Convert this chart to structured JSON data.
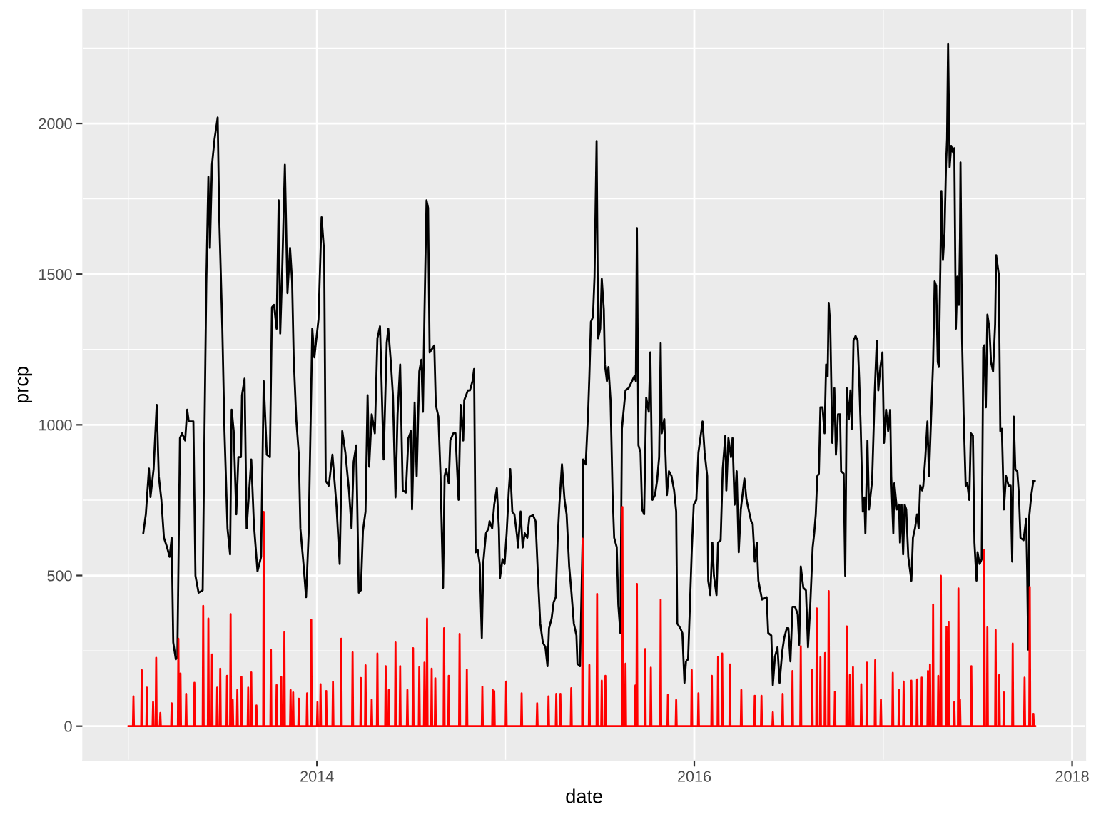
{
  "chart_data": {
    "type": "line",
    "xlabel": "date",
    "ylabel": "prcp",
    "xlim": [
      "2012-10-05",
      "2018-01-27"
    ],
    "ylim": [
      -113,
      2378
    ],
    "xticks": [
      "2014",
      "2016",
      "2018"
    ],
    "yticks": [
      0,
      500,
      1000,
      1500,
      2000
    ],
    "grid": true,
    "series": [
      {
        "color": "#000000",
        "x": [
          "2013-01-30",
          "2013-02-04",
          "2013-02-10",
          "2013-02-13",
          "2013-02-19",
          "2013-02-25",
          "2013-03-01",
          "2013-03-06",
          "2013-03-11",
          "2013-03-17",
          "2013-03-22",
          "2013-03-26",
          "2013-03-29",
          "2013-04-03",
          "2013-04-06",
          "2013-04-11",
          "2013-04-15",
          "2013-04-21",
          "2013-04-25",
          "2013-04-28",
          "2013-05-07",
          "2013-05-11",
          "2013-05-17",
          "2013-05-25",
          "2013-05-28",
          "2013-06-01",
          "2013-06-05",
          "2013-06-08",
          "2013-06-12",
          "2013-06-17",
          "2013-06-23",
          "2013-06-26",
          "2013-07-02",
          "2013-07-06",
          "2013-07-12",
          "2013-07-17",
          "2013-07-20",
          "2013-07-24",
          "2013-07-29",
          "2013-08-02",
          "2013-08-07",
          "2013-08-09",
          "2013-08-14",
          "2013-08-18",
          "2013-08-27",
          "2013-09-01",
          "2013-09-08",
          "2013-09-15",
          "2013-09-20",
          "2013-09-26",
          "2013-10-02",
          "2013-10-06",
          "2013-10-10",
          "2013-10-15",
          "2013-10-19",
          "2013-10-22",
          "2013-10-26",
          "2013-10-31",
          "2013-11-05",
          "2013-11-10",
          "2013-11-14",
          "2013-11-17",
          "2013-11-22",
          "2013-11-27",
          "2013-11-30",
          "2013-12-06",
          "2013-12-11",
          "2013-12-16",
          "2013-12-23",
          "2013-12-27",
          "2014-01-04",
          "2014-01-10",
          "2014-01-15",
          "2014-01-18",
          "2014-01-24",
          "2014-01-31",
          "2014-02-08",
          "2014-02-14",
          "2014-02-19",
          "2014-02-25",
          "2014-03-04",
          "2014-03-09",
          "2014-03-13",
          "2014-03-18",
          "2014-03-23",
          "2014-03-27",
          "2014-03-31",
          "2014-04-05",
          "2014-04-09",
          "2014-04-12",
          "2014-04-17",
          "2014-04-23",
          "2014-04-28",
          "2014-05-03",
          "2014-05-05",
          "2014-05-10",
          "2014-05-16",
          "2014-05-19",
          "2014-05-24",
          "2014-05-28",
          "2014-06-02",
          "2014-06-06",
          "2014-06-11",
          "2014-06-16",
          "2014-06-22",
          "2014-06-27",
          "2014-07-02",
          "2014-07-04",
          "2014-07-09",
          "2014-07-13",
          "2014-07-18",
          "2014-07-22",
          "2014-07-25",
          "2014-07-28",
          "2014-08-01",
          "2014-08-04",
          "2014-08-07",
          "2014-08-16",
          "2014-08-19",
          "2014-08-24",
          "2014-08-28",
          "2014-09-02",
          "2014-09-05",
          "2014-09-08",
          "2014-09-13",
          "2014-09-16",
          "2014-09-22",
          "2014-09-26",
          "2014-10-02",
          "2014-10-06",
          "2014-10-11",
          "2014-10-13",
          "2014-10-20",
          "2014-10-24",
          "2014-10-29",
          "2014-11-01",
          "2014-11-04",
          "2014-11-08",
          "2014-11-12",
          "2014-11-16",
          "2014-11-19",
          "2014-11-24",
          "2014-11-29",
          "2014-12-01",
          "2014-12-06",
          "2014-12-10",
          "2014-12-15",
          "2014-12-19",
          "2014-12-21",
          "2014-12-26",
          "2014-12-30",
          "2015-01-03",
          "2015-01-07",
          "2015-01-10",
          "2015-01-14",
          "2015-01-18",
          "2015-01-23",
          "2015-01-25",
          "2015-01-30",
          "2015-02-03",
          "2015-02-07",
          "2015-02-12",
          "2015-02-16",
          "2015-02-23",
          "2015-02-28",
          "2015-03-05",
          "2015-03-09",
          "2015-03-14",
          "2015-03-19",
          "2015-03-23",
          "2015-03-26",
          "2015-03-31",
          "2015-04-04",
          "2015-04-08",
          "2015-04-12",
          "2015-04-15",
          "2015-04-20",
          "2015-04-25",
          "2015-04-29",
          "2015-05-04",
          "2015-05-08",
          "2015-05-13",
          "2015-05-18",
          "2015-05-20",
          "2015-05-25",
          "2015-05-30",
          "2015-05-31",
          "2015-06-05",
          "2015-06-10",
          "2015-06-12",
          "2015-06-15",
          "2015-06-19",
          "2015-06-22",
          "2015-06-26",
          "2015-06-29",
          "2015-07-03",
          "2015-07-06",
          "2015-07-10",
          "2015-07-12",
          "2015-07-16",
          "2015-07-19",
          "2015-07-23",
          "2015-07-27",
          "2015-07-30",
          "2015-08-04",
          "2015-08-07",
          "2015-08-11",
          "2015-08-14",
          "2015-08-21",
          "2015-08-27",
          "2015-09-07",
          "2015-09-10",
          "2015-09-12",
          "2015-09-15",
          "2015-09-19",
          "2015-09-22",
          "2015-09-26",
          "2015-09-30",
          "2015-10-05",
          "2015-10-08",
          "2015-10-12",
          "2015-10-17",
          "2015-10-21",
          "2015-10-25",
          "2015-10-28",
          "2015-10-30",
          "2015-11-04",
          "2015-11-09",
          "2015-11-13",
          "2015-11-18",
          "2015-11-23",
          "2015-11-27",
          "2015-11-29",
          "2015-12-05",
          "2015-12-09",
          "2015-12-13",
          "2015-12-16",
          "2015-12-20",
          "2015-12-23",
          "2015-12-27",
          "2015-12-31",
          "2016-01-05",
          "2016-01-09",
          "2016-01-14",
          "2016-01-17",
          "2016-01-21",
          "2016-01-26",
          "2016-01-28",
          "2016-02-01",
          "2016-02-05",
          "2016-02-08",
          "2016-02-13",
          "2016-02-16",
          "2016-02-21",
          "2016-02-25",
          "2016-03-01",
          "2016-03-03",
          "2016-03-07",
          "2016-03-12",
          "2016-03-15",
          "2016-03-19",
          "2016-03-23",
          "2016-03-27",
          "2016-03-31",
          "2016-04-07",
          "2016-04-11",
          "2016-04-20",
          "2016-04-23",
          "2016-04-27",
          "2016-05-01",
          "2016-05-04",
          "2016-05-11",
          "2016-05-20",
          "2016-05-23",
          "2016-05-29",
          "2016-06-01",
          "2016-06-05",
          "2016-06-10",
          "2016-06-14",
          "2016-06-19",
          "2016-06-23",
          "2016-06-28",
          "2016-07-01",
          "2016-07-05",
          "2016-07-09",
          "2016-07-14",
          "2016-07-19",
          "2016-07-22",
          "2016-07-25",
          "2016-07-30",
          "2016-08-04",
          "2016-08-08",
          "2016-08-12",
          "2016-08-17",
          "2016-08-20",
          "2016-08-23",
          "2016-08-26",
          "2016-08-29",
          "2016-09-01",
          "2016-09-05",
          "2016-09-09",
          "2016-09-12",
          "2016-09-15",
          "2016-09-17",
          "2016-09-20",
          "2016-09-24",
          "2016-09-28",
          "2016-10-01",
          "2016-10-05",
          "2016-10-09",
          "2016-10-11",
          "2016-10-16",
          "2016-10-19",
          "2016-10-22",
          "2016-10-26",
          "2016-10-29",
          "2016-11-01",
          "2016-11-04",
          "2016-11-08",
          "2016-11-12",
          "2016-11-15",
          "2016-11-18",
          "2016-11-22",
          "2016-11-25",
          "2016-11-27",
          "2016-12-01",
          "2016-12-04",
          "2016-12-07",
          "2016-12-10",
          "2016-12-15",
          "2016-12-19",
          "2016-12-22",
          "2016-12-26",
          "2016-12-30",
          "2017-01-02",
          "2017-01-06",
          "2017-01-10",
          "2017-01-14",
          "2017-01-16",
          "2017-01-20",
          "2017-01-22",
          "2017-01-27",
          "2017-01-31",
          "2017-02-02",
          "2017-02-05",
          "2017-02-08",
          "2017-02-11",
          "2017-02-14",
          "2017-02-18",
          "2017-02-24",
          "2017-02-27",
          "2017-03-03",
          "2017-03-07",
          "2017-03-10",
          "2017-03-13",
          "2017-03-17",
          "2017-03-19",
          "2017-03-23",
          "2017-03-27",
          "2017-03-30",
          "2017-04-03",
          "2017-04-07",
          "2017-04-10",
          "2017-04-13",
          "2017-04-16",
          "2017-04-18",
          "2017-04-21",
          "2017-04-23",
          "2017-04-26",
          "2017-04-29",
          "2017-05-02",
          "2017-05-04",
          "2017-05-06",
          "2017-05-09",
          "2017-05-12",
          "2017-05-16",
          "2017-05-18",
          "2017-05-21",
          "2017-05-24",
          "2017-05-27",
          "2017-05-29",
          "2017-05-30",
          "2017-06-02",
          "2017-06-05",
          "2017-06-09",
          "2017-06-12",
          "2017-06-16",
          "2017-06-19",
          "2017-06-23",
          "2017-06-26",
          "2017-06-30",
          "2017-07-02",
          "2017-07-06",
          "2017-07-10",
          "2017-07-13",
          "2017-07-15",
          "2017-07-18",
          "2017-07-21",
          "2017-07-25",
          "2017-07-28",
          "2017-08-01",
          "2017-08-05",
          "2017-08-07",
          "2017-08-12",
          "2017-08-15",
          "2017-08-18",
          "2017-08-22",
          "2017-08-26",
          "2017-08-31",
          "2017-09-04",
          "2017-09-07",
          "2017-09-10",
          "2017-09-13",
          "2017-09-17",
          "2017-09-20",
          "2017-09-23",
          "2017-09-29",
          "2017-10-04",
          "2017-10-06",
          "2017-10-08",
          "2017-10-10",
          "2017-10-14",
          "2017-10-18",
          "2017-10-21"
        ],
        "values": [
          640,
          703,
          855,
          760,
          853,
          1066,
          830,
          751,
          625,
          594,
          562,
          625,
          278,
          222,
          230,
          956,
          972,
          948,
          1050,
          1011,
          1011,
          499,
          443,
          451,
          908,
          1469,
          1823,
          1587,
          1863,
          1949,
          2020,
          1689,
          1319,
          987,
          656,
          570,
          1050,
          979,
          703,
          893,
          893,
          1098,
          1153,
          656,
          885,
          672,
          514,
          562,
          1145,
          901,
          893,
          1390,
          1398,
          1319,
          1745,
          1303,
          1524,
          1863,
          1437,
          1587,
          1476,
          1224,
          1019,
          901,
          656,
          538,
          428,
          640,
          1319,
          1224,
          1350,
          1689,
          1571,
          814,
          798,
          901,
          727,
          538,
          979,
          908,
          782,
          656,
          877,
          932,
          443,
          451,
          648,
          712,
          1098,
          861,
          1035,
          972,
          1287,
          1327,
          1208,
          885,
          1271,
          1319,
          1208,
          1098,
          759,
          1035,
          1200,
          782,
          775,
          956,
          979,
          719,
          1074,
          830,
          1177,
          1216,
          1043,
          1366,
          1745,
          1720,
          1240,
          1263,
          1066,
          1027,
          837,
          459,
          830,
          853,
          806,
          948,
          972,
          972,
          751,
          1066,
          948,
          1082,
          1114,
          1114,
          1145,
          1185,
          577,
          585,
          538,
          293,
          546,
          640,
          656,
          680,
          656,
          735,
          790,
          656,
          491,
          554,
          538,
          640,
          775,
          853,
          712,
          703,
          633,
          593,
          712,
          593,
          640,
          625,
          694,
          700,
          680,
          483,
          341,
          278,
          262,
          199,
          325,
          357,
          412,
          428,
          633,
          735,
          869,
          751,
          703,
          530,
          451,
          341,
          301,
          207,
          199,
          625,
          885,
          869,
          1058,
          1161,
          1342,
          1358,
          1492,
          1942,
          1287,
          1319,
          1484,
          1382,
          1200,
          1145,
          1192,
          1082,
          767,
          625,
          594,
          404,
          309,
          987,
          1114,
          1122,
          1161,
          1145,
          1653,
          932,
          908,
          719,
          703,
          1090,
          1043,
          1240,
          751,
          767,
          814,
          893,
          1271,
          972,
          1019,
          767,
          846,
          830,
          782,
          712,
          341,
          325,
          309,
          144,
          215,
          222,
          372,
          577,
          735,
          751,
          908,
          972,
          1011,
          908,
          830,
          483,
          435,
          609,
          499,
          435,
          609,
          617,
          853,
          964,
          782,
          956,
          893,
          956,
          735,
          846,
          577,
          719,
          822,
          751,
          680,
          672,
          546,
          609,
          483,
          420,
          428,
          309,
          301,
          136,
          230,
          262,
          144,
          246,
          293,
          325,
          325,
          215,
          396,
          396,
          372,
          270,
          530,
          459,
          451,
          262,
          388,
          593,
          640,
          703,
          830,
          838,
          1058,
          1058,
          972,
          1200,
          1161,
          1405,
          1334,
          940,
          1121,
          901,
          1035,
          1035,
          846,
          838,
          499,
          1121,
          1019,
          1114,
          987,
          1279,
          1295,
          1279,
          1153,
          987,
          712,
          759,
          640,
          948,
          719,
          767,
          814,
          1106,
          1279,
          1114,
          1192,
          1240,
          940,
          1050,
          979,
          1050,
          830,
          640,
          806,
          719,
          735,
          609,
          735,
          570,
          735,
          719,
          562,
          483,
          625,
          656,
          703,
          656,
          798,
          782,
          798,
          893,
          1011,
          830,
          1019,
          1208,
          1476,
          1461,
          1208,
          1192,
          1524,
          1776,
          1547,
          1634,
          1863,
          1949,
          2265,
          1855,
          1926,
          1902,
          1918,
          1319,
          1492,
          1398,
          1618,
          1871,
          1287,
          1035,
          798,
          806,
          751,
          972,
          964,
          609,
          483,
          577,
          538,
          554,
          1256,
          1264,
          1058,
          1366,
          1319,
          1208,
          1177,
          1334,
          1563,
          1500,
          979,
          987,
          719,
          830,
          798,
          798,
          546,
          1027,
          853,
          845,
          767,
          625,
          617,
          688,
          514,
          254,
          696,
          767,
          814,
          814
        ]
      },
      {
        "color": "#ff0000",
        "x": [
          "2013-01-01",
          "2013-01-10",
          "2013-01-11",
          "2013-01-12",
          "2013-01-26",
          "2013-01-27",
          "2013-01-28",
          "2013-02-05",
          "2013-02-06",
          "2013-02-07",
          "2013-02-17",
          "2013-02-18",
          "2013-02-19",
          "2013-02-23",
          "2013-02-24",
          "2013-02-25",
          "2013-03-03",
          "2013-03-04",
          "2013-03-05",
          "2013-03-25",
          "2013-03-26",
          "2013-03-27",
          "2013-04-07",
          "2013-04-08",
          "2013-04-09",
          "2013-04-11",
          "2013-04-12",
          "2013-04-13",
          "2013-04-22",
          "2013-04-23",
          "2013-04-24",
          "2013-05-08",
          "2013-05-09",
          "2013-05-10",
          "2013-05-25",
          "2013-05-26",
          "2013-05-27",
          "2013-06-04",
          "2013-06-05",
          "2013-06-06",
          "2013-06-11",
          "2013-06-12",
          "2013-06-13",
          "2013-06-21",
          "2013-06-22",
          "2013-06-23",
          "2013-06-27",
          "2013-06-28",
          "2013-06-29",
          "2013-07-10",
          "2013-07-11",
          "2013-07-12",
          "2013-07-17",
          "2013-07-18",
          "2013-07-19",
          "2013-07-21",
          "2013-07-22",
          "2013-07-23",
          "2013-07-30",
          "2013-07-31",
          "2013-08-01",
          "2013-08-07",
          "2013-08-08",
          "2013-08-09",
          "2013-08-20",
          "2013-08-21",
          "2013-08-22",
          "2013-08-26",
          "2013-08-27",
          "2013-08-28",
          "2013-09-05",
          "2013-09-06",
          "2013-09-07",
          "2013-09-19",
          "2013-09-20",
          "2013-09-21",
          "2013-10-03",
          "2013-10-04",
          "2013-10-05",
          "2013-10-14",
          "2013-10-15",
          "2013-10-16",
          "2013-10-23",
          "2013-10-24",
          "2013-10-25",
          "2013-10-29",
          "2013-10-30",
          "2013-10-31",
          "2013-11-10",
          "2013-11-11",
          "2013-11-12",
          "2013-11-15",
          "2013-11-16",
          "2013-11-17",
          "2013-11-26",
          "2013-11-27",
          "2013-11-28",
          "2013-12-12",
          "2013-12-13",
          "2013-12-14",
          "2013-12-20",
          "2013-12-21",
          "2013-12-22",
          "2014-01-01",
          "2014-01-02",
          "2014-01-03",
          "2014-01-07",
          "2014-01-08",
          "2014-01-09",
          "2014-01-18",
          "2014-01-19",
          "2014-01-20",
          "2014-01-31",
          "2014-02-01",
          "2014-02-02",
          "2014-02-16",
          "2014-02-17",
          "2014-02-18",
          "2014-03-10",
          "2014-03-11",
          "2014-03-12",
          "2014-03-26",
          "2014-03-27",
          "2014-03-28",
          "2014-04-04",
          "2014-04-05",
          "2014-04-06",
          "2014-04-16",
          "2014-04-17",
          "2014-04-18",
          "2014-04-27",
          "2014-04-28",
          "2014-04-29",
          "2014-05-13",
          "2014-05-14",
          "2014-05-15",
          "2014-05-19",
          "2014-05-20",
          "2014-05-21",
          "2014-06-01",
          "2014-06-02",
          "2014-06-03",
          "2014-06-10",
          "2014-06-11",
          "2014-06-12",
          "2014-06-24",
          "2014-06-25",
          "2014-06-26",
          "2014-07-05",
          "2014-07-06",
          "2014-07-07",
          "2014-07-17",
          "2014-07-18",
          "2014-07-19",
          "2014-07-27",
          "2014-07-28",
          "2014-07-29",
          "2014-08-01",
          "2014-08-02",
          "2014-08-03",
          "2014-08-10",
          "2014-08-11",
          "2014-08-12",
          "2014-08-17",
          "2014-08-18",
          "2014-08-19",
          "2014-09-03",
          "2014-09-04",
          "2014-09-05",
          "2014-09-12",
          "2014-09-13",
          "2014-09-14",
          "2014-10-03",
          "2014-10-04",
          "2014-10-05",
          "2014-10-17",
          "2014-10-18",
          "2014-10-19",
          "2014-11-16",
          "2014-11-17",
          "2014-11-18",
          "2014-12-06",
          "2014-12-07",
          "2014-12-08",
          "2014-12-09",
          "2014-12-10",
          "2014-12-11",
          "2015-01-01",
          "2015-01-02",
          "2015-01-03",
          "2015-01-31",
          "2015-02-01",
          "2015-02-02",
          "2015-03-02",
          "2015-03-03",
          "2015-03-04",
          "2015-03-24",
          "2015-03-25",
          "2015-03-26",
          "2015-04-08",
          "2015-04-09",
          "2015-04-10",
          "2015-04-16",
          "2015-04-17",
          "2015-04-18",
          "2015-05-07",
          "2015-05-08",
          "2015-05-09",
          "2015-05-29",
          "2015-05-30",
          "2015-05-31",
          "2015-06-11",
          "2015-06-12",
          "2015-06-13",
          "2015-06-26",
          "2015-06-27",
          "2015-06-28",
          "2015-07-05",
          "2015-07-06",
          "2015-07-07",
          "2015-07-12",
          "2015-07-13",
          "2015-07-14",
          "2015-08-14",
          "2015-08-15",
          "2015-08-16",
          "2015-08-20",
          "2015-08-21",
          "2015-08-22",
          "2015-09-08",
          "2015-09-09",
          "2015-09-10",
          "2015-09-11",
          "2015-09-12",
          "2015-09-13",
          "2015-09-27",
          "2015-09-28",
          "2015-09-29",
          "2015-10-08",
          "2015-10-09",
          "2015-10-10",
          "2015-10-27",
          "2015-10-28",
          "2015-10-29",
          "2015-11-10",
          "2015-11-11",
          "2015-11-12",
          "2015-11-26",
          "2015-11-27",
          "2015-11-28",
          "2015-12-26",
          "2015-12-27",
          "2015-12-28",
          "2016-01-08",
          "2016-01-09",
          "2016-01-10",
          "2016-02-03",
          "2016-02-04",
          "2016-02-05",
          "2016-02-15",
          "2016-02-16",
          "2016-02-17",
          "2016-02-23",
          "2016-02-24",
          "2016-02-25",
          "2016-03-09",
          "2016-03-10",
          "2016-03-11",
          "2016-03-31",
          "2016-04-01",
          "2016-04-02",
          "2016-04-26",
          "2016-04-27",
          "2016-04-28",
          "2016-05-09",
          "2016-05-10",
          "2016-05-11",
          "2016-05-31",
          "2016-06-01",
          "2016-06-02",
          "2016-06-19",
          "2016-06-20",
          "2016-06-21",
          "2016-07-08",
          "2016-07-09",
          "2016-07-10",
          "2016-07-24",
          "2016-07-25",
          "2016-07-26",
          "2016-08-15",
          "2016-08-16",
          "2016-08-17",
          "2016-08-24",
          "2016-08-25",
          "2016-08-26",
          "2016-08-31",
          "2016-09-01",
          "2016-09-02",
          "2016-09-09",
          "2016-09-10",
          "2016-09-11",
          "2016-09-16",
          "2016-09-17",
          "2016-09-18",
          "2016-09-28",
          "2016-09-29",
          "2016-09-30",
          "2016-10-21",
          "2016-10-22",
          "2016-10-23",
          "2016-10-27",
          "2016-10-28",
          "2016-10-29",
          "2016-11-02",
          "2016-11-03",
          "2016-11-04",
          "2016-11-18",
          "2016-11-19",
          "2016-11-20",
          "2016-11-29",
          "2016-11-30",
          "2016-12-01",
          "2016-12-15",
          "2016-12-16",
          "2016-12-17",
          "2016-12-26",
          "2016-12-27",
          "2016-12-28",
          "2017-01-18",
          "2017-01-19",
          "2017-01-20",
          "2017-01-30",
          "2017-01-31",
          "2017-02-01",
          "2017-02-08",
          "2017-02-09",
          "2017-02-10",
          "2017-02-23",
          "2017-02-24",
          "2017-02-25",
          "2017-03-06",
          "2017-03-07",
          "2017-03-08",
          "2017-03-15",
          "2017-03-16",
          "2017-03-17",
          "2017-03-27",
          "2017-03-28",
          "2017-03-29",
          "2017-03-31",
          "2017-04-01",
          "2017-04-02",
          "2017-04-06",
          "2017-04-07",
          "2017-04-08",
          "2017-04-16",
          "2017-04-17",
          "2017-04-18",
          "2017-04-21",
          "2017-04-22",
          "2017-04-23",
          "2017-05-02",
          "2017-05-03",
          "2017-05-04",
          "2017-05-06",
          "2017-05-07",
          "2017-05-08",
          "2017-05-17",
          "2017-05-18",
          "2017-05-19",
          "2017-05-25",
          "2017-05-26",
          "2017-05-27",
          "2017-05-28",
          "2017-05-29",
          "2017-05-30",
          "2017-06-19",
          "2017-06-20",
          "2017-06-21",
          "2017-07-14",
          "2017-07-15",
          "2017-07-16",
          "2017-07-20",
          "2017-07-21",
          "2017-07-22",
          "2017-08-05",
          "2017-08-06",
          "2017-08-07",
          "2017-08-12",
          "2017-08-13",
          "2017-08-14",
          "2017-08-21",
          "2017-08-22",
          "2017-08-23",
          "2017-09-07",
          "2017-09-08",
          "2017-09-09",
          "2017-09-30",
          "2017-10-01",
          "2017-10-02",
          "2017-10-10",
          "2017-10-11",
          "2017-10-12",
          "2017-10-17",
          "2017-10-18",
          "2017-10-19",
          "2017-10-22"
        ],
        "values": [
          0,
          0,
          99,
          0,
          0,
          186,
          0,
          0,
          128,
          0,
          0,
          80,
          0,
          0,
          227,
          0,
          0,
          44,
          0,
          0,
          76,
          0,
          0,
          290,
          0,
          0,
          175,
          0,
          0,
          107,
          0,
          0,
          144,
          0,
          0,
          399,
          0,
          0,
          357,
          0,
          0,
          238,
          0,
          0,
          128,
          0,
          0,
          191,
          0,
          0,
          167,
          0,
          0,
          372,
          0,
          0,
          88,
          0,
          0,
          120,
          0,
          0,
          164,
          0,
          0,
          128,
          0,
          0,
          178,
          0,
          0,
          69,
          0,
          0,
          711,
          0,
          0,
          254,
          0,
          0,
          136,
          0,
          0,
          163,
          0,
          0,
          312,
          0,
          0,
          120,
          0,
          0,
          112,
          0,
          0,
          91,
          0,
          0,
          109,
          0,
          0,
          353,
          0,
          0,
          80,
          0,
          0,
          139,
          0,
          0,
          117,
          0,
          0,
          147,
          0,
          0,
          290,
          0,
          0,
          245,
          0,
          0,
          160,
          0,
          0,
          202,
          0,
          0,
          88,
          0,
          0,
          241,
          0,
          0,
          199,
          0,
          0,
          120,
          0,
          0,
          278,
          0,
          0,
          199,
          0,
          0,
          120,
          0,
          0,
          259,
          0,
          0,
          196,
          0,
          0,
          211,
          0,
          0,
          357,
          0,
          0,
          191,
          0,
          0,
          159,
          0,
          0,
          325,
          0,
          0,
          167,
          0,
          0,
          306,
          0,
          0,
          188,
          0,
          0,
          131,
          0,
          0,
          120,
          0,
          0,
          116,
          0,
          0,
          148,
          0,
          0,
          109,
          0,
          0,
          76,
          0,
          0,
          99,
          0,
          0,
          107,
          0,
          0,
          107,
          0,
          0,
          126,
          0,
          0,
          622,
          0,
          0,
          203,
          0,
          0,
          439,
          0,
          0,
          151,
          0,
          0,
          167,
          0,
          0,
          727,
          0,
          0,
          207,
          0,
          0,
          135,
          0,
          0,
          472,
          0,
          0,
          256,
          0,
          0,
          194,
          0,
          0,
          420,
          0,
          0,
          104,
          0,
          0,
          87,
          0,
          0,
          186,
          0,
          0,
          109,
          0,
          0,
          167,
          0,
          0,
          230,
          0,
          0,
          241,
          0,
          0,
          205,
          0,
          0,
          120,
          0,
          0,
          101,
          0,
          0,
          101,
          0,
          0,
          46,
          0,
          0,
          107,
          0,
          0,
          183,
          0,
          0,
          265,
          0,
          0,
          186,
          0,
          0,
          391,
          0,
          0,
          229,
          0,
          0,
          243,
          0,
          0,
          448,
          0,
          0,
          114,
          0,
          0,
          331,
          0,
          0,
          170,
          0,
          0,
          196,
          0,
          0,
          139,
          0,
          0,
          211,
          0,
          0,
          219,
          0,
          0,
          88,
          0,
          0,
          177,
          0,
          0,
          120,
          0,
          0,
          148,
          0,
          0,
          151,
          0,
          0,
          155,
          0,
          0,
          161,
          0,
          0,
          183,
          0,
          0,
          205,
          0,
          0,
          404,
          0,
          0,
          167,
          0,
          0,
          499,
          0,
          0,
          330,
          0,
          0,
          345,
          0,
          0,
          80,
          0,
          0,
          457,
          0,
          0,
          88,
          0,
          0,
          199,
          0,
          0,
          585,
          0,
          0,
          328,
          0,
          0,
          319,
          0,
          0,
          170,
          0,
          0,
          112,
          0,
          0,
          274,
          0,
          0,
          161,
          0,
          0,
          462,
          0,
          0,
          41,
          0,
          0
        ]
      }
    ]
  }
}
